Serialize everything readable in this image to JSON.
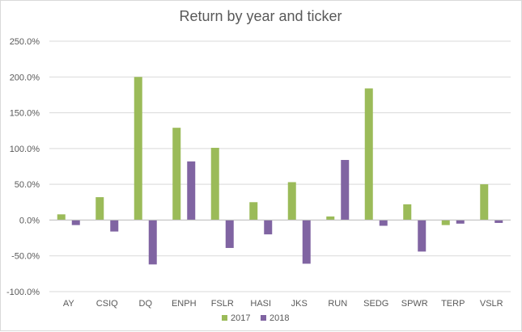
{
  "chart_data": {
    "type": "bar",
    "title": "Return by year and ticker",
    "xlabel": "",
    "ylabel": "",
    "categories": [
      "AY",
      "CSIQ",
      "DQ",
      "ENPH",
      "FSLR",
      "HASI",
      "JKS",
      "RUN",
      "SEDG",
      "SPWR",
      "TERP",
      "VSLR"
    ],
    "series": [
      {
        "name": "2017",
        "color": "#9bbb59",
        "values": [
          8,
          32,
          200,
          129,
          101,
          25,
          53,
          5,
          184,
          22,
          -7,
          50
        ]
      },
      {
        "name": "2018",
        "color": "#8064a2",
        "values": [
          -7,
          -16,
          -62,
          82,
          -39,
          -20,
          -61,
          84,
          -8,
          -44,
          -5,
          -4
        ]
      }
    ],
    "ylim": [
      -100,
      250
    ],
    "yticks": [
      250,
      200,
      150,
      100,
      50,
      0,
      -50,
      -100
    ],
    "ytick_labels": [
      "250.0%",
      "200.0%",
      "150.0%",
      "100.0%",
      "50.0%",
      "0.0%",
      "-50.0%",
      "-100.0%"
    ],
    "grid": true,
    "legend_position": "bottom"
  }
}
